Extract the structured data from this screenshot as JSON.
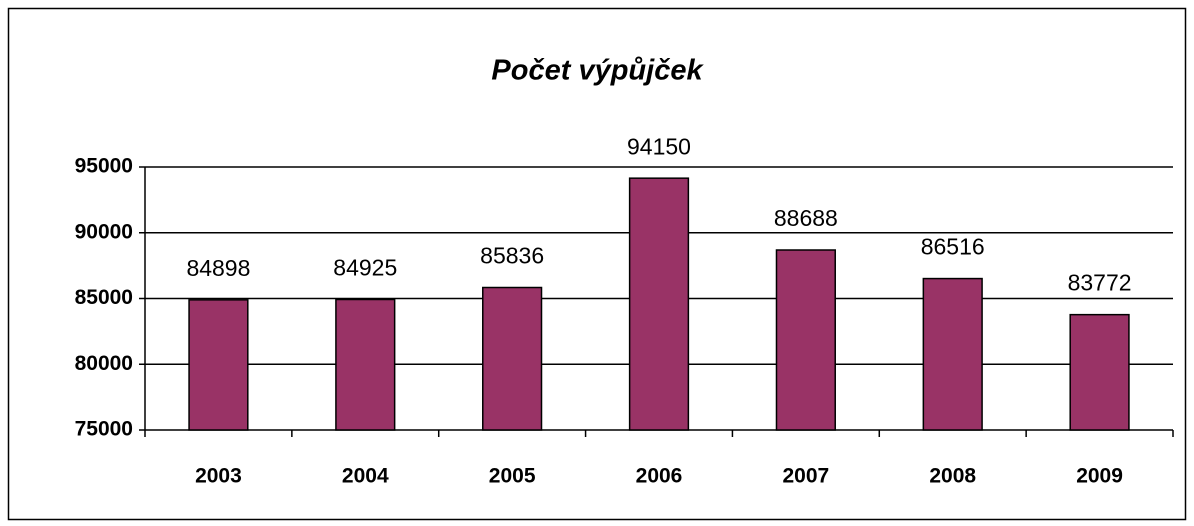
{
  "chart_data": {
    "type": "bar",
    "title": "Počet výpůjček",
    "categories": [
      "2003",
      "2004",
      "2005",
      "2006",
      "2007",
      "2008",
      "2009"
    ],
    "values": [
      84898,
      84925,
      85836,
      94150,
      88688,
      86516,
      83772
    ],
    "color": "#993366",
    "ylim": [
      75000,
      95000
    ],
    "yticks": [
      75000,
      80000,
      85000,
      90000,
      95000
    ],
    "grid": true
  }
}
